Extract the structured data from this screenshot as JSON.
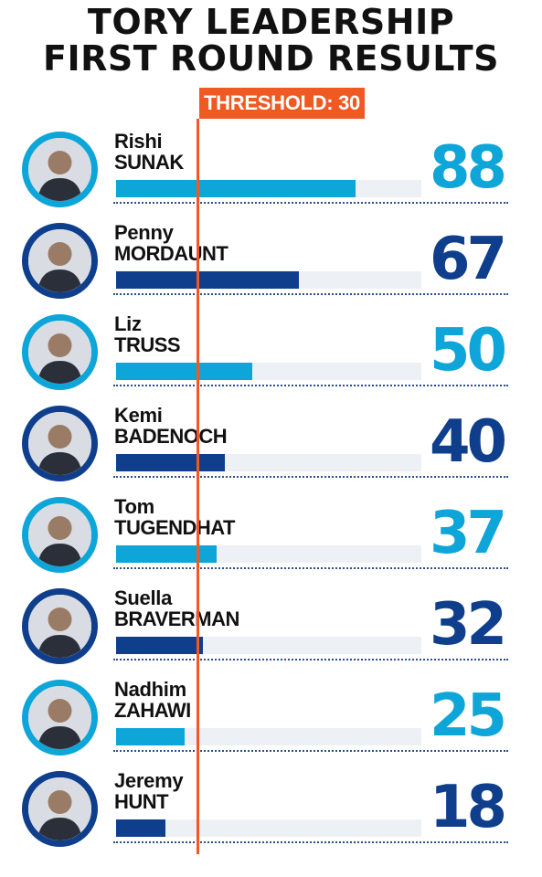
{
  "title_line1": "TORY LEADERSHIP",
  "title_line2": "FIRST ROUND RESULTS",
  "threshold_label": "THRESHOLD: 30",
  "colors": {
    "light_blue": "#0ea5d9",
    "dark_blue": "#0f3f8c",
    "threshold_orange": "#f05a22",
    "track": "#edf1f6"
  },
  "chart_data": {
    "type": "bar",
    "orientation": "horizontal",
    "title": "TORY LEADERSHIP FIRST ROUND RESULTS",
    "threshold": 30,
    "xlim": [
      0,
      112
    ],
    "candidates": [
      {
        "first": "Rishi",
        "last": "SUNAK",
        "value": 88,
        "color": "light"
      },
      {
        "first": "Penny",
        "last": "MORDAUNT",
        "value": 67,
        "color": "dark"
      },
      {
        "first": "Liz",
        "last": "TRUSS",
        "value": 50,
        "color": "light"
      },
      {
        "first": "Kemi",
        "last": "BADENOCH",
        "value": 40,
        "color": "dark"
      },
      {
        "first": "Tom",
        "last": "TUGENDHAT",
        "value": 37,
        "color": "light"
      },
      {
        "first": "Suella",
        "last": "BRAVERMAN",
        "value": 32,
        "color": "dark"
      },
      {
        "first": "Nadhim",
        "last": "ZAHAWI",
        "value": 25,
        "color": "light"
      },
      {
        "first": "Jeremy",
        "last": "HUNT",
        "value": 18,
        "color": "dark"
      }
    ]
  }
}
